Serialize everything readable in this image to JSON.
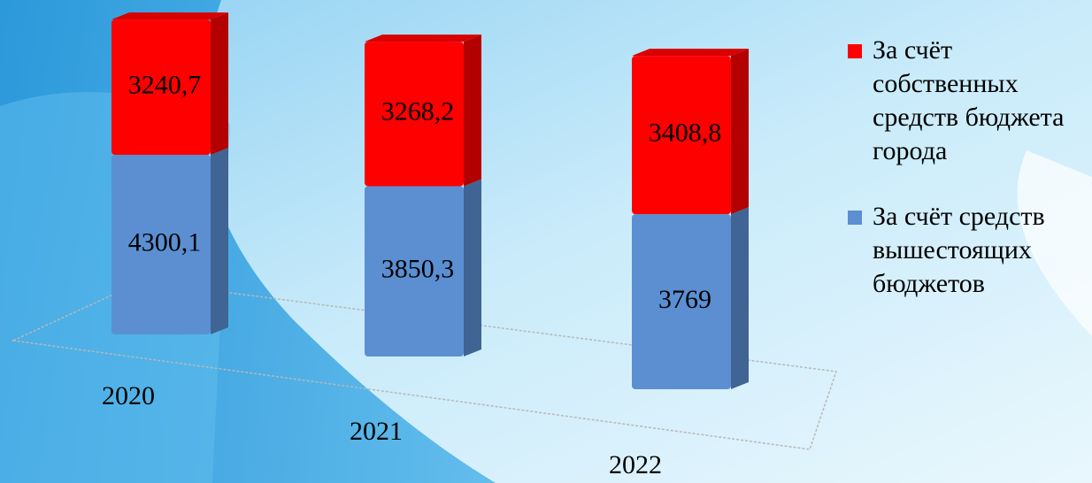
{
  "chart_data": {
    "type": "bar",
    "stacked": true,
    "categories": [
      "2020",
      "2021",
      "2022"
    ],
    "series": [
      {
        "name": "За счёт собственных средств бюджета города",
        "color": "#ff0000",
        "values": [
          3240.7,
          3268.2,
          3408.8
        ],
        "value_labels": [
          "3240,7",
          "3268,2",
          "3408,8"
        ]
      },
      {
        "name": "За счёт средств вышестоящих бюджетов",
        "color": "#5b8fd2",
        "values": [
          4300.1,
          3850.3,
          3769
        ],
        "value_labels": [
          "4300,1",
          "3850,3",
          "3769"
        ]
      }
    ]
  }
}
